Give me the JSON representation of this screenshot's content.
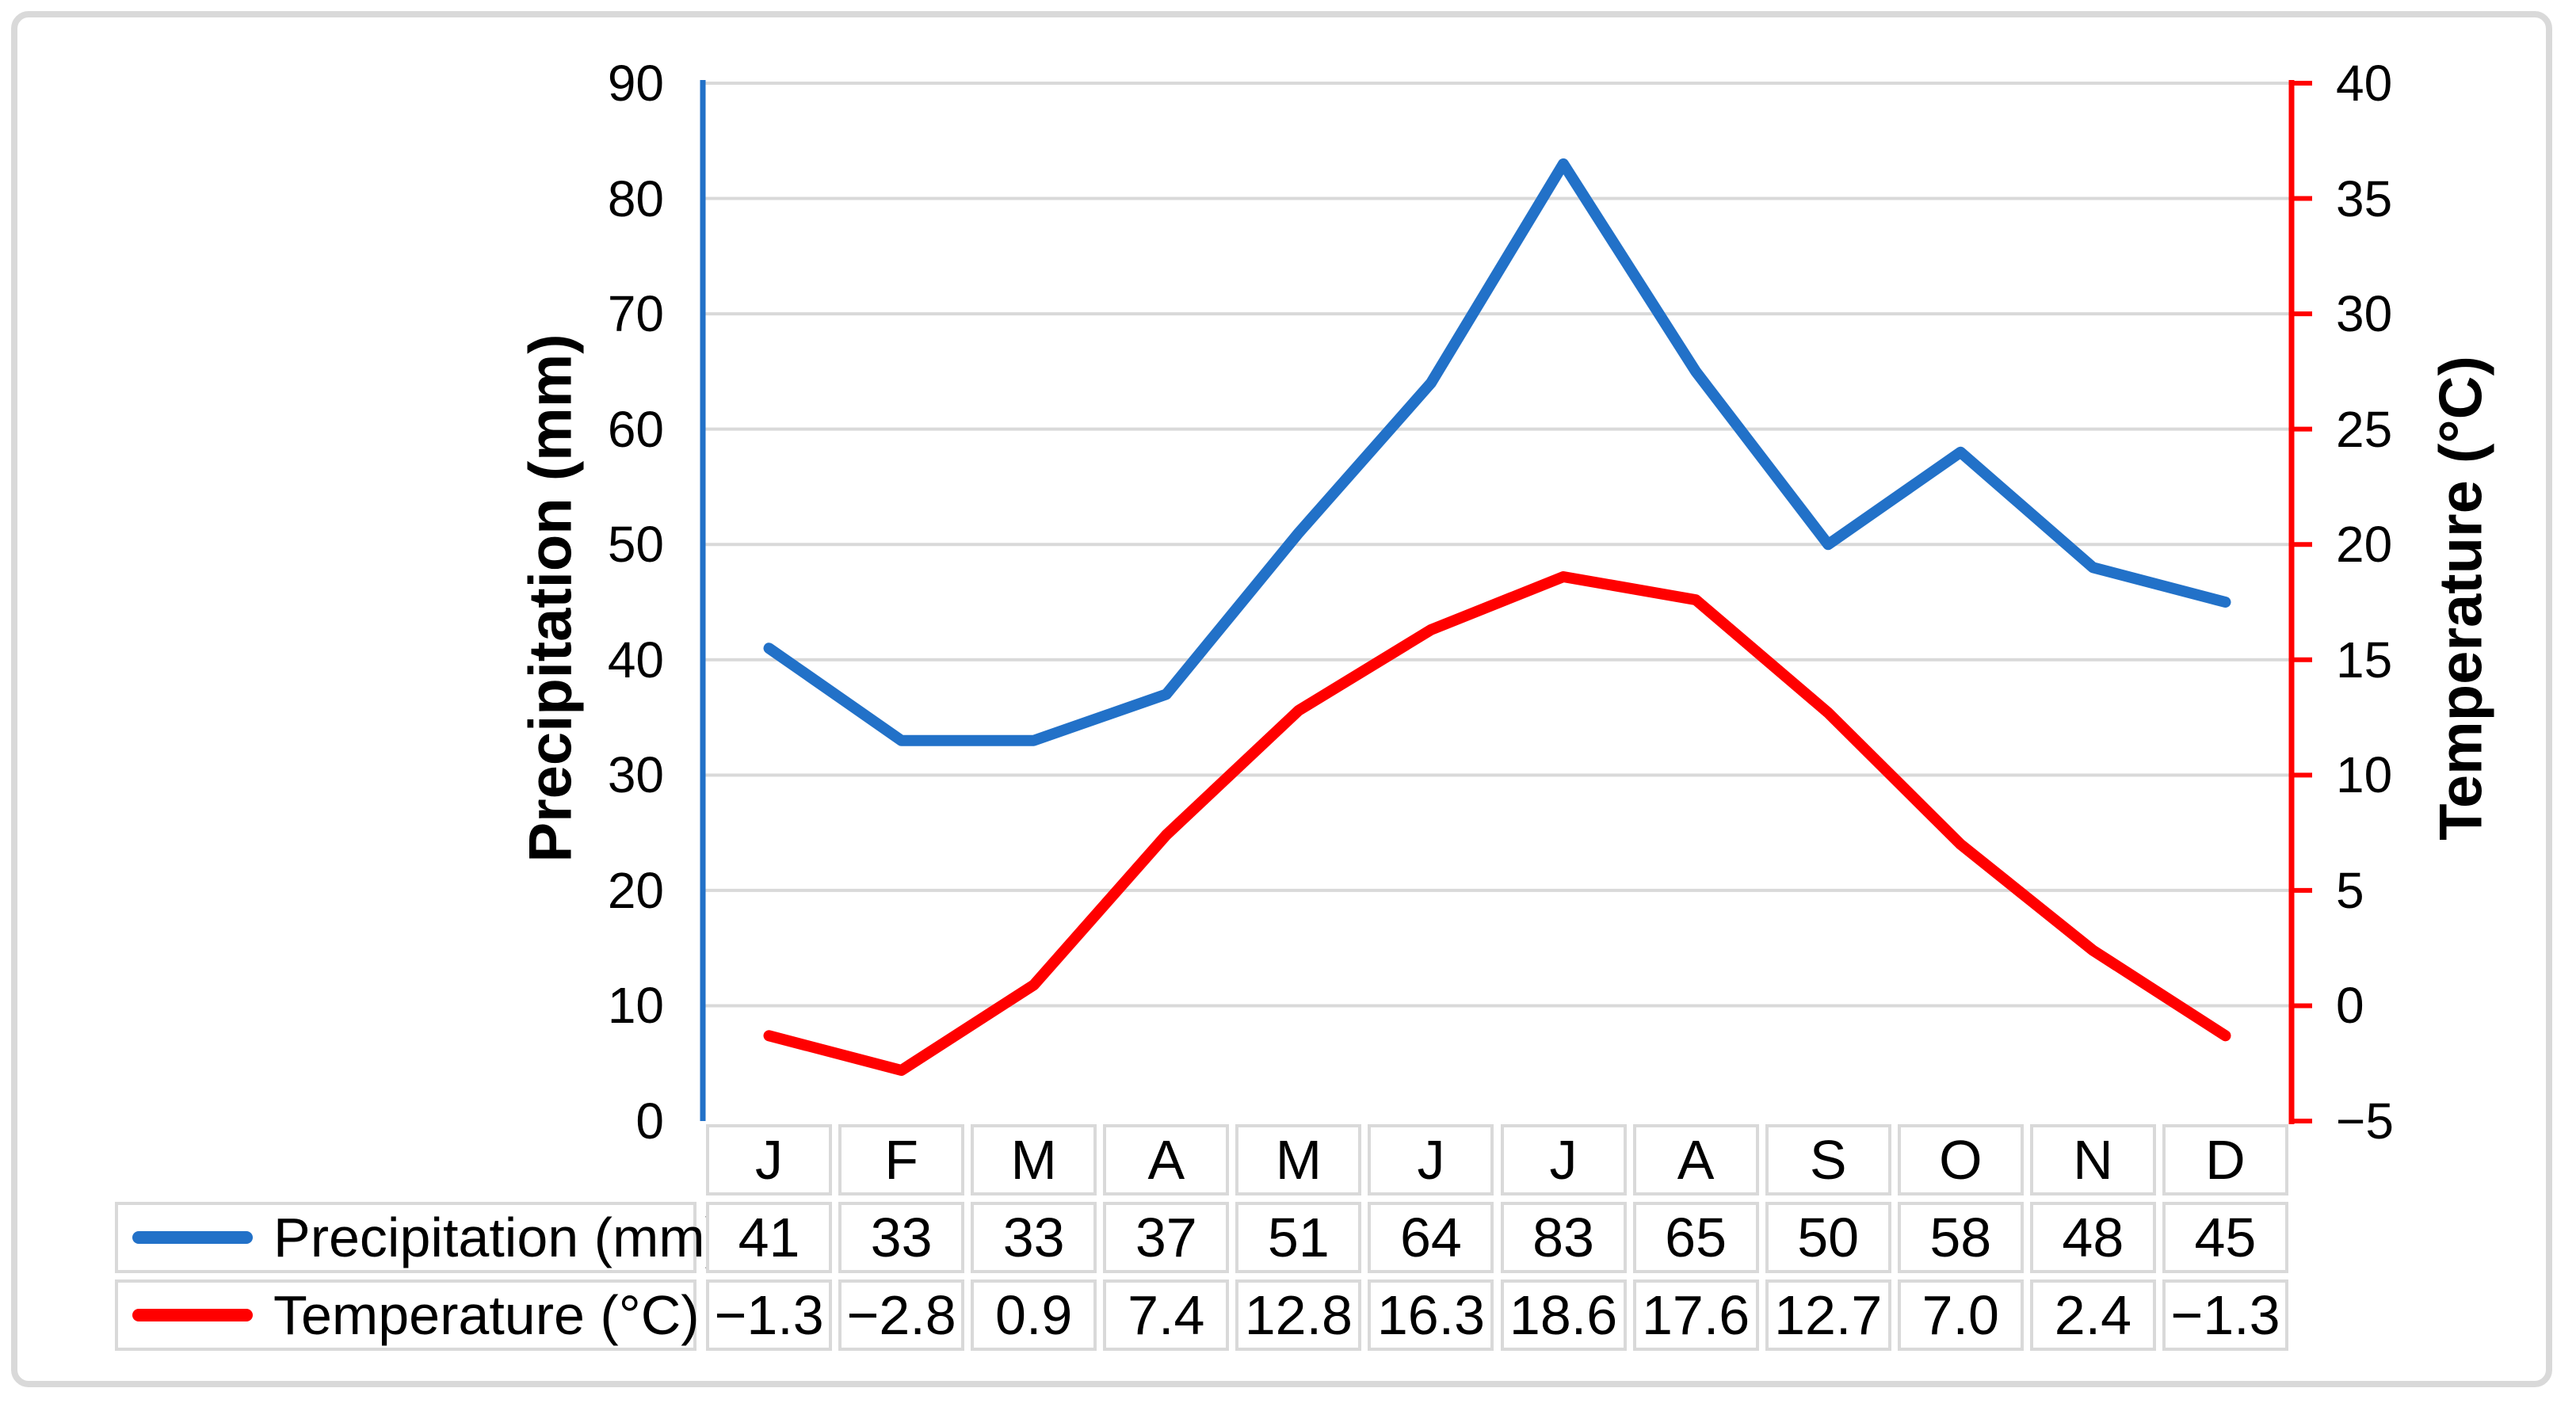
{
  "chart_data": {
    "type": "line",
    "categories": [
      "J",
      "F",
      "M",
      "A",
      "M",
      "J",
      "J",
      "A",
      "S",
      "O",
      "N",
      "D"
    ],
    "series": [
      {
        "name": "Precipitation (mm)",
        "color": "#2271C8",
        "axis": "left",
        "values": [
          41,
          33,
          33,
          37,
          51,
          64,
          83,
          65,
          50,
          58,
          48,
          45
        ],
        "display": [
          "41",
          "33",
          "33",
          "37",
          "51",
          "64",
          "83",
          "65",
          "50",
          "58",
          "48",
          "45"
        ]
      },
      {
        "name": "Temperature (°C)",
        "color": "#FF0000",
        "axis": "right",
        "values": [
          -1.3,
          -2.8,
          0.9,
          7.4,
          12.8,
          16.3,
          18.6,
          17.6,
          12.7,
          7.0,
          2.4,
          -1.3
        ],
        "display": [
          "−1.3",
          "−2.8",
          "0.9",
          "7.4",
          "12.8",
          "16.3",
          "18.6",
          "17.6",
          "12.7",
          "7.0",
          "2.4",
          "−1.3"
        ]
      }
    ],
    "left_axis": {
      "title": "Precipitation (mm)",
      "min": 0,
      "max": 90,
      "step": 10,
      "tick_labels": [
        "0",
        "10",
        "20",
        "30",
        "40",
        "50",
        "60",
        "70",
        "80",
        "90"
      ],
      "color": "#2271C8"
    },
    "right_axis": {
      "title": "Temperature (°C)",
      "min": -5,
      "max": 40,
      "step": 5,
      "tick_labels": [
        "−5",
        "0",
        "5",
        "10",
        "15",
        "20",
        "25",
        "30",
        "35",
        "40"
      ],
      "color": "#FF0000"
    },
    "grid": true,
    "gridline_color": "#D9D9D9",
    "legend_position": "table-left",
    "table_border_color": "#D9D9D9"
  }
}
